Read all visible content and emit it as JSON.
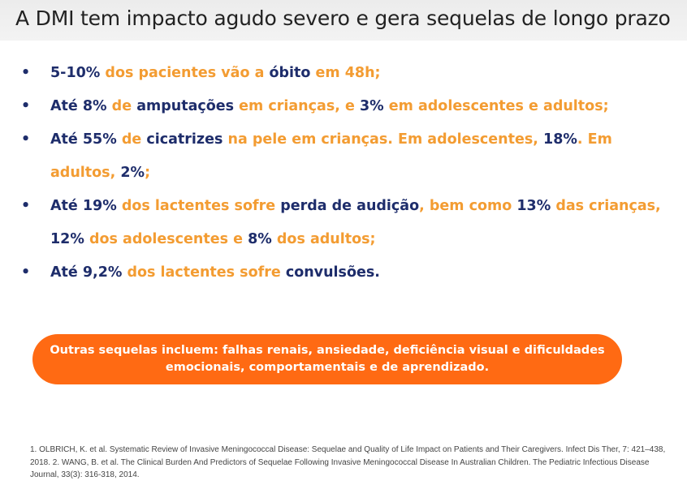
{
  "title": "A DMI tem impacto agudo severo e gera sequelas de longo prazo",
  "bullet_symbol": "•",
  "bullets": [
    [
      {
        "t": "5-10%",
        "c": "n"
      },
      {
        "t": " dos pacientes vão a ",
        "c": "o"
      },
      {
        "t": "óbito",
        "c": "n"
      },
      {
        "t": " em 48h;",
        "c": "o"
      }
    ],
    [
      {
        "t": "Até 8%",
        "c": "n"
      },
      {
        "t": " de ",
        "c": "o"
      },
      {
        "t": "amputações",
        "c": "n"
      },
      {
        "t": " em crianças, e ",
        "c": "o"
      },
      {
        "t": "3%",
        "c": "n"
      },
      {
        "t": " em adolescentes e adultos;",
        "c": "o"
      }
    ],
    [
      {
        "t": "Até 55%",
        "c": "n"
      },
      {
        "t": " de ",
        "c": "o"
      },
      {
        "t": "cicatrizes",
        "c": "n"
      },
      {
        "t": " na pele em crianças. Em adolescentes, ",
        "c": "o"
      },
      {
        "t": "18%",
        "c": "n"
      },
      {
        "t": ". Em adultos, ",
        "c": "o"
      },
      {
        "t": "2%",
        "c": "n"
      },
      {
        "t": ";",
        "c": "o"
      }
    ],
    [
      {
        "t": "Até 19%",
        "c": "n"
      },
      {
        "t": " dos lactentes sofre ",
        "c": "o"
      },
      {
        "t": "perda de audição",
        "c": "n"
      },
      {
        "t": ", bem como ",
        "c": "o"
      },
      {
        "t": "13%",
        "c": "n"
      },
      {
        "t": " das crianças, ",
        "c": "o"
      },
      {
        "t": "12%",
        "c": "n"
      },
      {
        "t": " dos adolescentes e ",
        "c": "o"
      },
      {
        "t": "8%",
        "c": "n"
      },
      {
        "t": " dos adultos;",
        "c": "o"
      }
    ],
    [
      {
        "t": "Até 9,2%",
        "c": "n"
      },
      {
        "t": " dos lactentes sofre ",
        "c": "o"
      },
      {
        "t": "convulsões.",
        "c": "n"
      }
    ]
  ],
  "callout": "Outras sequelas incluem: falhas renais, ansiedade, deficiência visual e dificuldades emocionais, comportamentais e de aprendizado.",
  "references": "1. OLBRICH, K. et al. Systematic Review of Invasive Meningococcal Disease: Sequelae and Quality of Life Impact on Patients and Their Caregivers. Infect Dis Ther, 7: 421–438, 2018. 2. WANG, B. et al. The Clinical Burden And Predictors of Sequelae Following Invasive Meningococcal Disease In Australian Children. The Pediatric Infectious Disease Journal, 33(3): 316-318, 2014.",
  "colors": {
    "navy": "#1e2d6b",
    "orange_text": "#f39c32",
    "callout_bg": "#ff6a13"
  }
}
